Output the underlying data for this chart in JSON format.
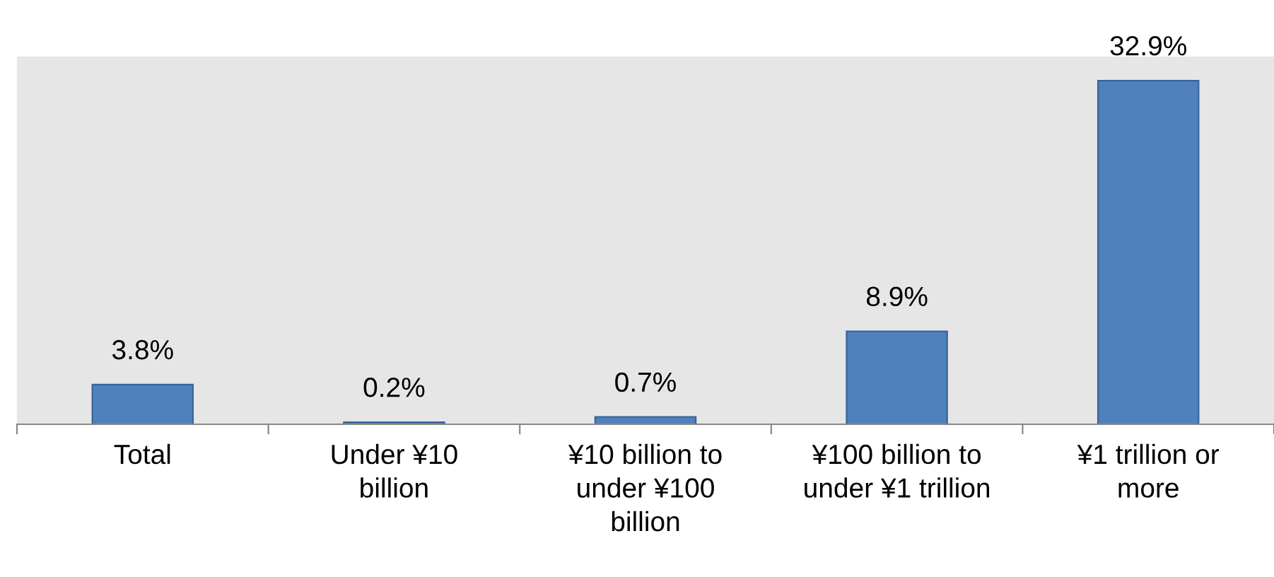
{
  "chart_data": {
    "type": "bar",
    "categories": [
      "Total",
      "Under ¥10\nbillion",
      "¥10 billion to\nunder ¥100\nbillion",
      "¥100 billion to\nunder ¥1 trillion",
      "¥1 trillion or\nmore"
    ],
    "values": [
      3.8,
      0.2,
      0.7,
      8.9,
      32.9
    ],
    "value_labels": [
      "3.8%",
      "0.2%",
      "0.7%",
      "8.9%",
      "32.9%"
    ],
    "color": "#4f81bd"
  }
}
